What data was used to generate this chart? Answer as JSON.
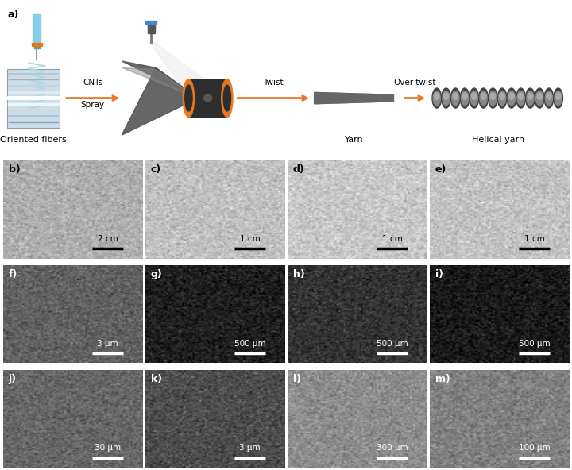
{
  "bg_color": "#ffffff",
  "label_fontsize": 9,
  "scalebar_fontsize": 7.5,
  "panel_label_color": "black",
  "row2_panels": [
    {
      "label": "b)",
      "scale": "2 cm",
      "gray": 0.68,
      "bar_color": "black"
    },
    {
      "label": "c)",
      "scale": "1 cm",
      "gray": 0.75,
      "bar_color": "black"
    },
    {
      "label": "d)",
      "scale": "1 cm",
      "gray": 0.78,
      "bar_color": "black"
    },
    {
      "label": "e)",
      "scale": "1 cm",
      "gray": 0.76,
      "bar_color": "black"
    }
  ],
  "row3_panels": [
    {
      "label": "f)",
      "scale": "3 μm",
      "gray": 0.38,
      "bar_color": "white"
    },
    {
      "label": "g)",
      "scale": "500 μm",
      "gray": 0.12,
      "bar_color": "white"
    },
    {
      "label": "h)",
      "scale": "500 μm",
      "gray": 0.2,
      "bar_color": "white"
    },
    {
      "label": "i)",
      "scale": "500 μm",
      "gray": 0.1,
      "bar_color": "white"
    }
  ],
  "row4_panels": [
    {
      "label": "j)",
      "scale": "30 μm",
      "gray": 0.4,
      "bar_color": "white"
    },
    {
      "label": "k)",
      "scale": "3 μm",
      "gray": 0.3,
      "bar_color": "white"
    },
    {
      "label": "l)",
      "scale": "300 μm",
      "gray": 0.55,
      "bar_color": "white"
    },
    {
      "label": "m)",
      "scale": "100 μm",
      "gray": 0.5,
      "bar_color": "white"
    }
  ],
  "oriented_fibers_label": "Oriented fibers",
  "yarn_label": "Yarn",
  "helical_yarn_label": "Helical yarn",
  "arrow1_label1": "CNTs",
  "arrow1_label2": "Spray",
  "arrow2_label": "Twist",
  "arrow3_label": "Over-twist",
  "arrow_color": "#E87722",
  "panel_a_label": "a)",
  "fiber_block_color": "#c8dff0",
  "fiber_line_colors": [
    "#b0b0b0",
    "#c0c0c0",
    "#ffffff",
    "#e0e0e0",
    "#d0d0d0",
    "#b8b8b8",
    "#c8c8c8",
    "#a8a8a8"
  ],
  "syringe_color": "#87CEEB",
  "coil_color": "#add8e6",
  "cone_color1": "#cccccc",
  "cone_color2": "#555555",
  "bobbin_dark": "#2e2e2e",
  "bobbin_orange": "#E87722",
  "yarn_rod_color": "#666666",
  "helix_dark": "#444444",
  "helix_light": "#888888"
}
